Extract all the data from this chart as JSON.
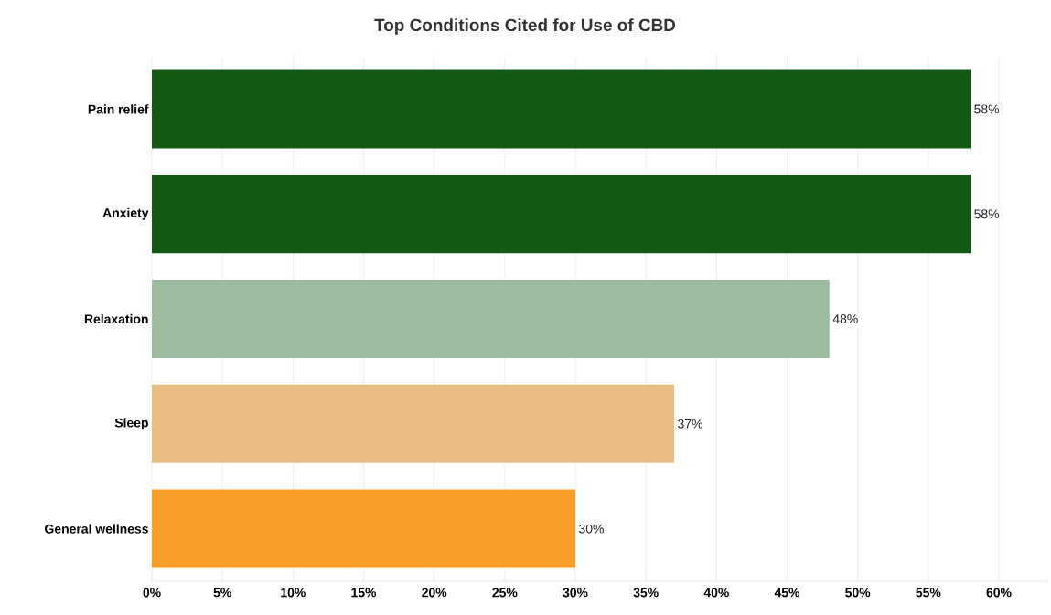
{
  "chart_data": {
    "type": "bar",
    "orientation": "horizontal",
    "title": "Top Conditions Cited for Use of CBD",
    "categories": [
      "Pain relief",
      "Anxiety",
      "Relaxation",
      "Sleep",
      "General wellness"
    ],
    "values": [
      58,
      58,
      48,
      37,
      30
    ],
    "colors": [
      "#145a14",
      "#145a14",
      "#9fbb9f",
      "#e9bc81",
      "#f99f27"
    ],
    "value_labels": [
      "58%",
      "58%",
      "48%",
      "37%",
      "30%"
    ],
    "xlim": [
      0,
      63.5
    ],
    "xticks": [
      {
        "value": 0,
        "label": "0%"
      },
      {
        "value": 5,
        "label": "5%"
      },
      {
        "value": 10,
        "label": "10%"
      },
      {
        "value": 15,
        "label": "15%"
      },
      {
        "value": 20,
        "label": "20%"
      },
      {
        "value": 25,
        "label": "25%"
      },
      {
        "value": 30,
        "label": "30%"
      },
      {
        "value": 35,
        "label": "35%"
      },
      {
        "value": 40,
        "label": "40%"
      },
      {
        "value": 45,
        "label": "45%"
      },
      {
        "value": 50,
        "label": "50%"
      },
      {
        "value": 55,
        "label": "55%"
      },
      {
        "value": 60,
        "label": "60%"
      }
    ],
    "grid": "x"
  }
}
